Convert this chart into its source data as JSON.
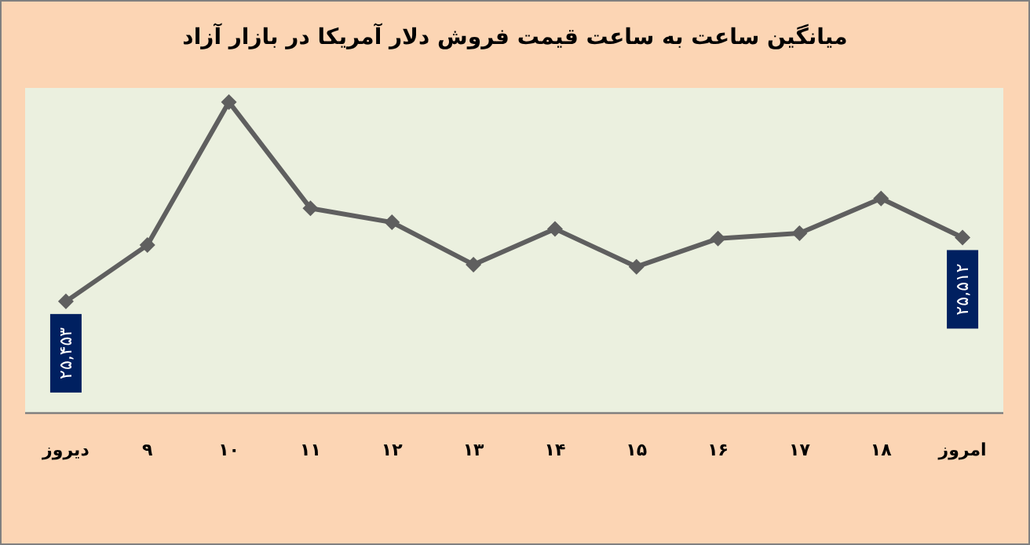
{
  "chart_data": {
    "type": "line",
    "title": "میانگین ساعت به ساعت قیمت فروش دلار آمریکا در بازار آزاد",
    "categories": [
      "دیروز",
      "۹",
      "۱۰",
      "۱۱",
      "۱۲",
      "۱۳",
      "۱۴",
      "۱۵",
      "۱۶",
      "۱۷",
      "۱۸",
      "امروز"
    ],
    "series": [
      {
        "color": "#5f5f5f",
        "values": [
          25453,
          25505,
          25637,
          25539,
          25526,
          25487,
          25520,
          25485,
          25511,
          25516,
          25548,
          25512
        ],
        "value_labels": [
          "۲۵,۴۵۳",
          null,
          null,
          null,
          null,
          null,
          null,
          null,
          null,
          null,
          null,
          "۲۵,۵۱۲"
        ]
      }
    ],
    "ylim": [
      25350,
      25650
    ],
    "marker": "diamond"
  }
}
